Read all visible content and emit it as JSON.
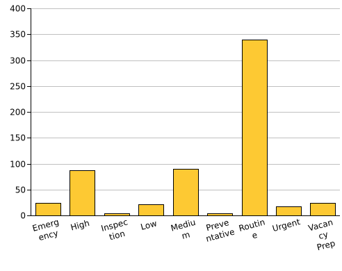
{
  "chart_data": {
    "type": "bar",
    "title": "",
    "xlabel": "",
    "ylabel": "",
    "ylim": [
      0,
      400
    ],
    "yticks": [
      0,
      50,
      100,
      150,
      200,
      250,
      300,
      350,
      400
    ],
    "grid": true,
    "legend": "none",
    "bar_color": "#FDC933",
    "bar_stroke": "#000000",
    "categories": [
      "Emergency",
      "High",
      "Inspection",
      "Low",
      "Medium",
      "Preventative",
      "Routine",
      "Urgent",
      "Vacancy Prep"
    ],
    "category_label_lines": [
      [
        "Emerg",
        "ency"
      ],
      [
        "High"
      ],
      [
        "Inspec",
        "tion"
      ],
      [
        "Low"
      ],
      [
        "Mediu",
        "m"
      ],
      [
        "Preve",
        "ntative"
      ],
      [
        "Routin",
        "e"
      ],
      [
        "Urgent"
      ],
      [
        "Vacan",
        "cy",
        "Prep"
      ]
    ],
    "values": [
      24,
      87,
      4,
      22,
      90,
      4,
      339,
      18,
      24
    ]
  }
}
